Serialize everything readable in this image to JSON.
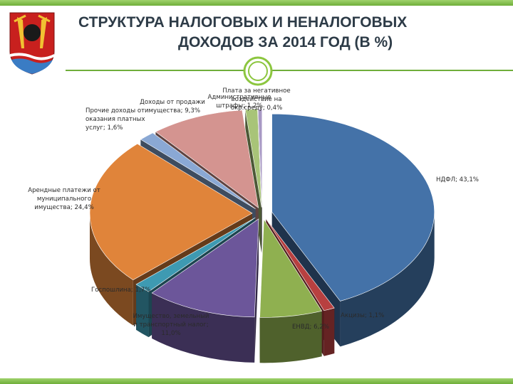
{
  "title": {
    "line1": "СТРУКТУРА НАЛОГОВЫХ И НЕНАЛОГОВЫХ",
    "line2": "ДОХОДОВ ЗА 2014 ГОД (В %)"
  },
  "chart_data": {
    "type": "pie",
    "title": "СТРУКТУРА НАЛОГОВЫХ И НЕНАЛОГОВЫХ ДОХОДОВ ЗА 2014 ГОД (В %)",
    "slices": [
      {
        "name": "НДФЛ",
        "value": 43.1,
        "color": "#4472a8",
        "label_lines": [
          "НДФЛ; 43,1%"
        ]
      },
      {
        "name": "Акцизы",
        "value": 1.1,
        "color": "#b84040",
        "label_lines": [
          "Акцизы; 1,1%"
        ]
      },
      {
        "name": "ЕНВД",
        "value": 6.2,
        "color": "#8fb050",
        "label_lines": [
          "ЕНВД; 6,2%"
        ]
      },
      {
        "name": "Имущество, земельный и транспортный налог",
        "value": 11.0,
        "color": "#6c569a",
        "label_lines": [
          "Имущество, земельный",
          "и транспортный налог;",
          "11,0%"
        ]
      },
      {
        "name": "Госпошлина",
        "value": 1.7,
        "color": "#3e9ab2",
        "label_lines": [
          "Госпошлина; 1,7%"
        ]
      },
      {
        "name": "Арендные платежи от муниципального имущества",
        "value": 24.4,
        "color": "#e0843a",
        "label_lines": [
          "Арендные платежи от",
          "муниципального",
          "имущества; 24,4%"
        ]
      },
      {
        "name": "Прочие доходы от оказания платных услуг",
        "value": 1.6,
        "color": "#8aa8d4",
        "label_lines": [
          "Прочие доходы от",
          "оказания платных",
          "услуг; 1,6%"
        ]
      },
      {
        "name": "Доходы от продажи имущества",
        "value": 9.3,
        "color": "#d49490",
        "label_lines": [
          "Доходы от продажи",
          "имущества; 9,3%"
        ]
      },
      {
        "name": "Административные штрафы",
        "value": 1.2,
        "color": "#a8c478",
        "label_lines": [
          "Административные",
          "штрафы; 1,2%"
        ]
      },
      {
        "name": "Плата за негативное воздействие на окр.среду",
        "value": 0.4,
        "color": "#a899c4",
        "label_lines": [
          "Плата за негативное",
          "воздействие на",
          "окр.среду; 0,4%"
        ]
      }
    ]
  }
}
